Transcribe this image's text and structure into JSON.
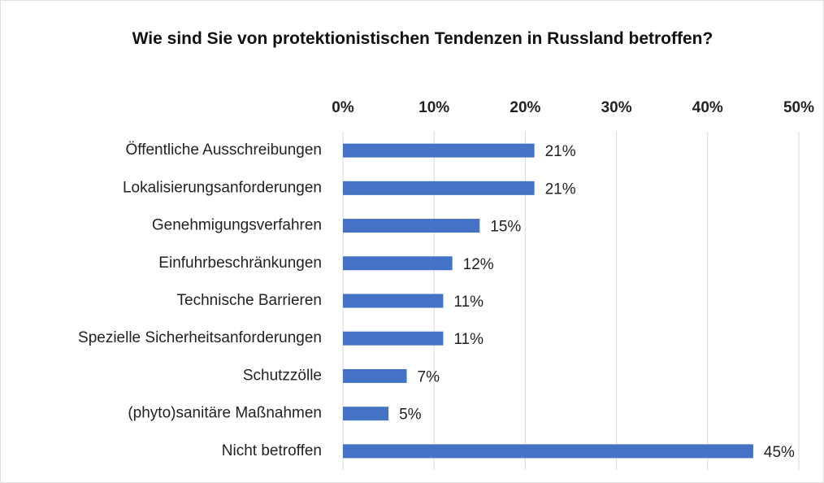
{
  "chart_data": {
    "type": "bar",
    "orientation": "horizontal",
    "title": "Wie sind Sie von protektionistischen Tendenzen in Russland betroffen?",
    "categories": [
      "Öffentliche Ausschreibungen",
      "Lokalisierungsanforderungen",
      "Genehmigungsverfahren",
      "Einfuhrbeschränkungen",
      "Technische Barrieren",
      "Spezielle Sicherheitsanforderungen",
      "Schutzzölle",
      "(phyto)sanitäre Maßnahmen",
      "Nicht betroffen"
    ],
    "values": [
      21,
      21,
      15,
      12,
      11,
      11,
      7,
      5,
      45
    ],
    "value_labels": [
      "21%",
      "21%",
      "15%",
      "12%",
      "11%",
      "11%",
      "7%",
      "5%",
      "45%"
    ],
    "color": "#4472c4",
    "xlim": [
      0,
      50
    ],
    "xticks": [
      {
        "value": 0,
        "label": "0%"
      },
      {
        "value": 10,
        "label": "10%"
      },
      {
        "value": 20,
        "label": "20%"
      },
      {
        "value": 30,
        "label": "30%"
      },
      {
        "value": 40,
        "label": "40%"
      },
      {
        "value": 50,
        "label": "50%"
      }
    ],
    "grid": true
  }
}
